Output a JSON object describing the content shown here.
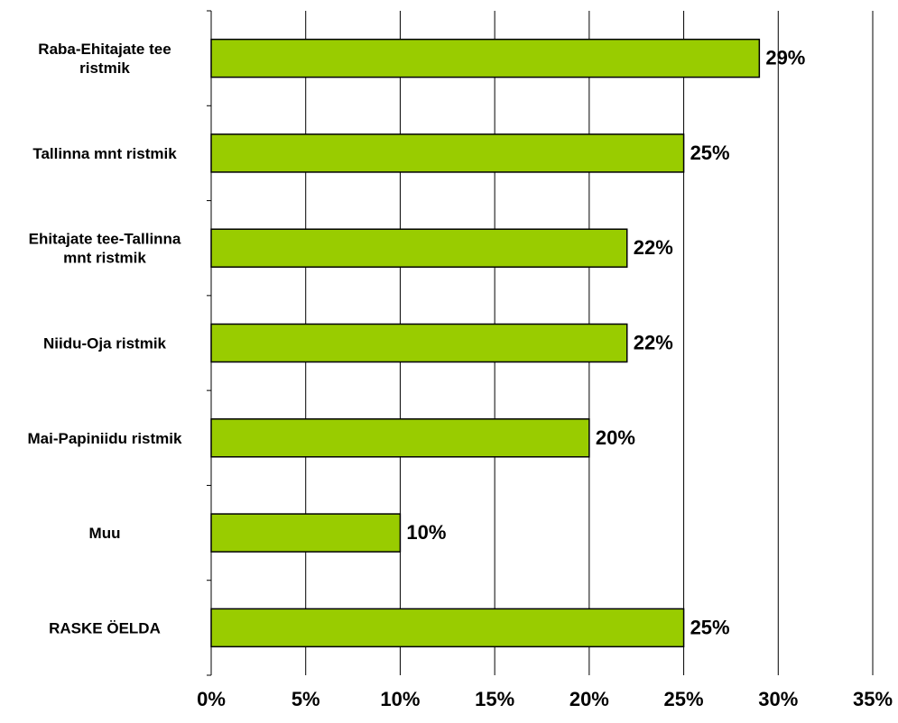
{
  "chart_data": {
    "type": "bar",
    "orientation": "horizontal",
    "categories": [
      "Raba-Ehitajate tee ristmik",
      "Tallinna mnt ristmik",
      "Ehitajate tee-Tallinna mnt ristmik",
      "Niidu-Oja ristmik",
      "Mai-Papiniidu ristmik",
      "Muu",
      "RASKE ÖELDA"
    ],
    "category_label_lines": [
      [
        "Raba-Ehitajate tee",
        "ristmik"
      ],
      [
        "Tallinna mnt ristmik"
      ],
      [
        "Ehitajate tee-Tallinna",
        "mnt ristmik"
      ],
      [
        "Niidu-Oja ristmik"
      ],
      [
        "Mai-Papiniidu ristmik"
      ],
      [
        "Muu"
      ],
      [
        "RASKE ÖELDA"
      ]
    ],
    "values": [
      29,
      25,
      22,
      22,
      20,
      10,
      25
    ],
    "data_labels": [
      "29%",
      "25%",
      "22%",
      "22%",
      "20%",
      "10%",
      "25%"
    ],
    "xlim": [
      0,
      35
    ],
    "xticks": [
      0,
      5,
      10,
      15,
      20,
      25,
      30,
      35
    ],
    "xtick_labels": [
      "0%",
      "5%",
      "10%",
      "15%",
      "20%",
      "25%",
      "30%",
      "35%"
    ],
    "grid": true,
    "bar_color": "#99CC00",
    "bar_border_color": "#000000",
    "gridline_color": "#000000"
  }
}
